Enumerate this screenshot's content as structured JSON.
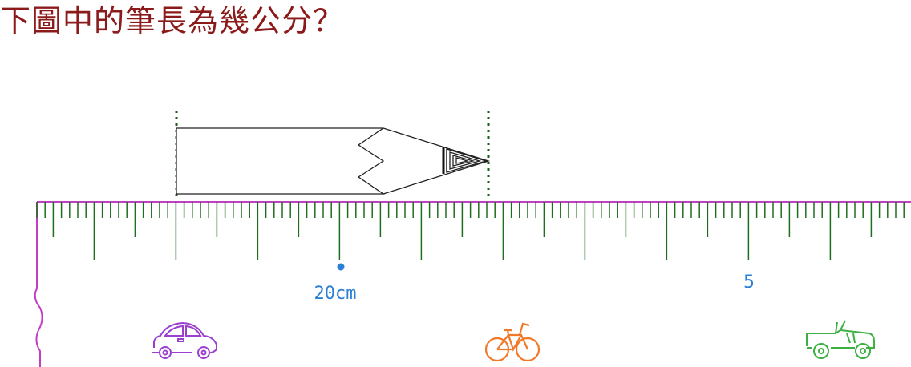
{
  "question": "下圖中的筆長為幾公分？",
  "ruler": {
    "center_label": "20cm",
    "right_label": "5",
    "icons": [
      "car-icon",
      "bicycle-icon",
      "jeep-icon"
    ]
  },
  "colors": {
    "question": "#8b1a1a",
    "ruler_border": "#c23fc2",
    "ticks": "#1f6e1f",
    "label": "#2a7fd6",
    "guides": "#1a5e1a",
    "car": "#9b3fcf",
    "bicycle": "#f07a2a",
    "jeep": "#3cb043"
  }
}
